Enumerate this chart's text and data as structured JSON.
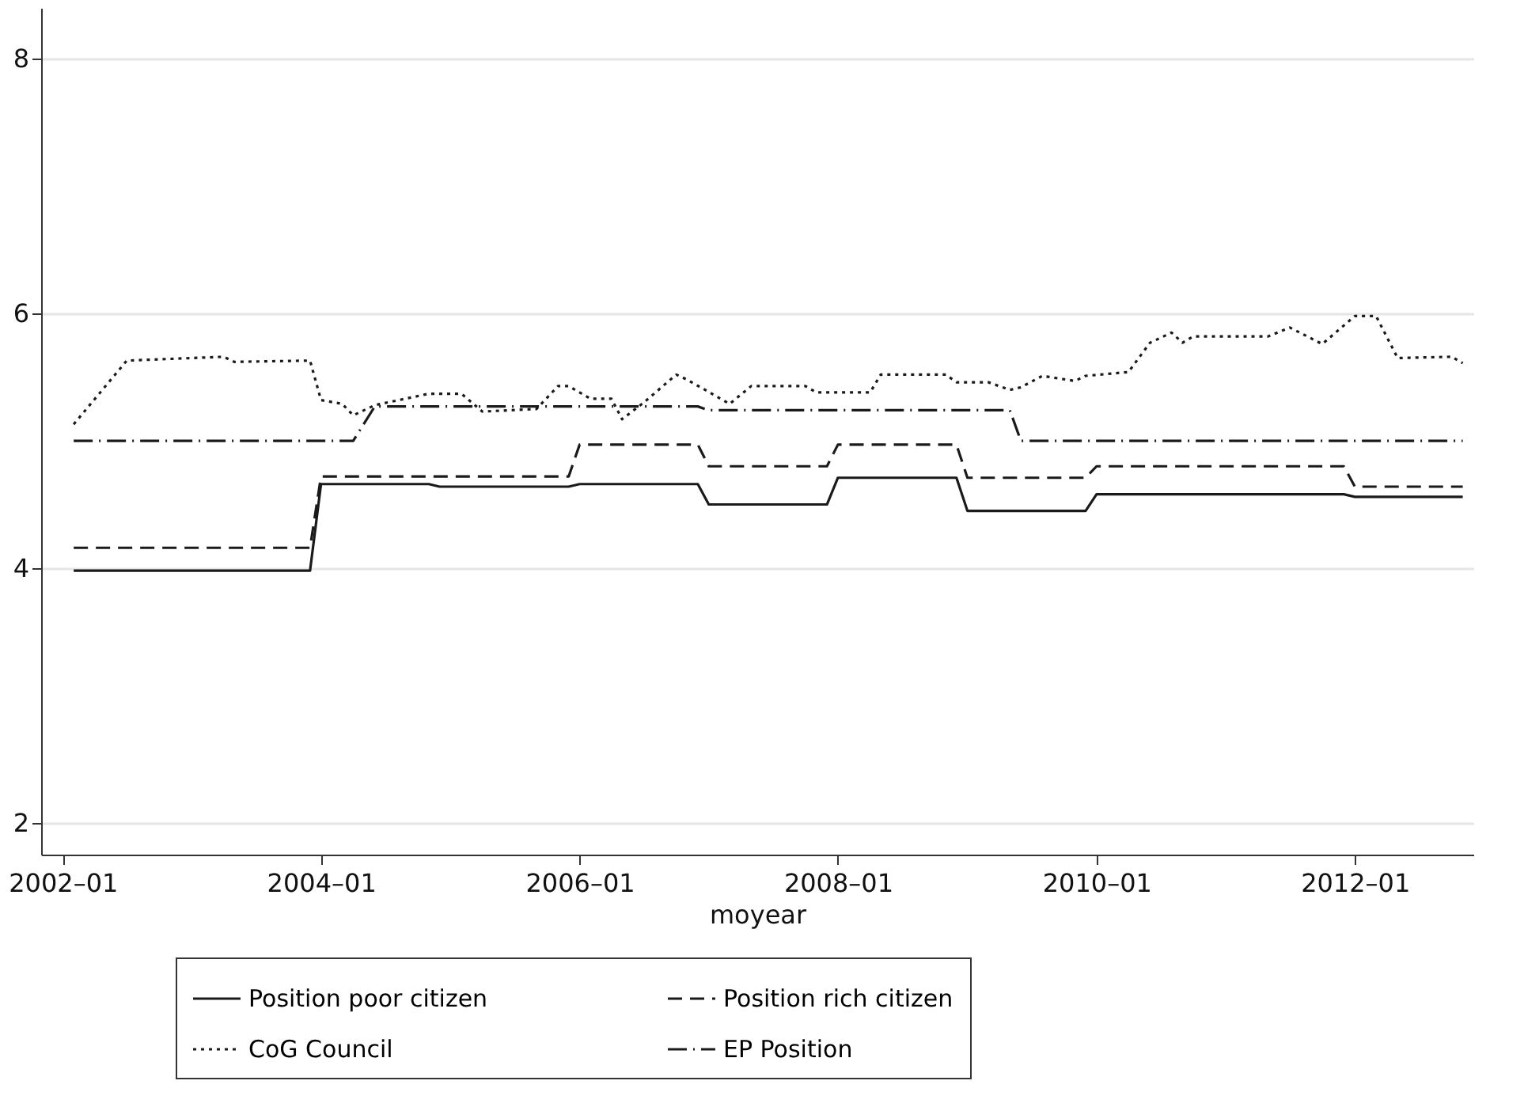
{
  "chart_data": {
    "type": "line",
    "xlabel": "moyear",
    "xlim": [
      "2001-11",
      "2012-12"
    ],
    "xticks": [
      {
        "value": "2002-01",
        "label": "2002–01"
      },
      {
        "value": "2004-01",
        "label": "2004–01"
      },
      {
        "value": "2006-01",
        "label": "2006–01"
      },
      {
        "value": "2008-01",
        "label": "2008–01"
      },
      {
        "value": "2010-01",
        "label": "2010–01"
      },
      {
        "value": "2012-01",
        "label": "2012–01"
      }
    ],
    "ylim": [
      1.75,
      8.4
    ],
    "yticks": [
      2,
      4,
      6,
      8
    ],
    "grid": "y",
    "legend": "bottom",
    "series": [
      {
        "name": "Position poor citizen",
        "color": "#1a1a1a",
        "line_style": "solid",
        "x": [
          "2002-02",
          "2003-12",
          "2004-01",
          "2004-11",
          "2004-12",
          "2005-12",
          "2006-01",
          "2006-12",
          "2007-01",
          "2007-12",
          "2008-01",
          "2008-12",
          "2009-01",
          "2009-12",
          "2010-01",
          "2011-12",
          "2012-01",
          "2012-11"
        ],
        "values": [
          3.98,
          3.98,
          4.66,
          4.66,
          4.64,
          4.64,
          4.66,
          4.66,
          4.5,
          4.5,
          4.71,
          4.71,
          4.45,
          4.45,
          4.58,
          4.58,
          4.56,
          4.56
        ]
      },
      {
        "name": "Position rich citizen",
        "color": "#1a1a1a",
        "line_style": "dashed",
        "x": [
          "2002-02",
          "2003-12",
          "2004-01",
          "2005-12",
          "2006-01",
          "2006-12",
          "2007-01",
          "2007-12",
          "2008-01",
          "2008-12",
          "2009-01",
          "2009-12",
          "2010-01",
          "2011-12",
          "2012-01",
          "2012-11"
        ],
        "values": [
          4.16,
          4.16,
          4.72,
          4.72,
          4.97,
          4.97,
          4.8,
          4.8,
          4.97,
          4.97,
          4.71,
          4.71,
          4.8,
          4.8,
          4.64,
          4.64
        ]
      },
      {
        "name": "CoG Council",
        "color": "#1a1a1a",
        "line_style": "dotted",
        "x": [
          "2002-02",
          "2002-07",
          "2003-04",
          "2003-05",
          "2003-12",
          "2004-01",
          "2004-03",
          "2004-04",
          "2004-06",
          "2004-11",
          "2005-02",
          "2005-04",
          "2005-09",
          "2005-11",
          "2005-12",
          "2006-02",
          "2006-04",
          "2006-05",
          "2006-07",
          "2006-10",
          "2006-11",
          "2007-03",
          "2007-05",
          "2007-10",
          "2007-11",
          "2008-04",
          "2008-05",
          "2008-11",
          "2008-12",
          "2009-03",
          "2009-05",
          "2009-06",
          "2009-08",
          "2009-11",
          "2009-12",
          "2010-04",
          "2010-06",
          "2010-08",
          "2010-09",
          "2010-10",
          "2011-05",
          "2011-07",
          "2011-10",
          "2012-01",
          "2012-03",
          "2012-05",
          "2012-10",
          "2012-11"
        ],
        "values": [
          5.13,
          5.63,
          5.66,
          5.62,
          5.63,
          5.32,
          5.29,
          5.2,
          5.28,
          5.37,
          5.37,
          5.23,
          5.25,
          5.43,
          5.43,
          5.33,
          5.33,
          5.17,
          5.3,
          5.52,
          5.48,
          5.29,
          5.43,
          5.43,
          5.38,
          5.38,
          5.52,
          5.52,
          5.46,
          5.46,
          5.4,
          5.42,
          5.51,
          5.47,
          5.51,
          5.54,
          5.77,
          5.85,
          5.77,
          5.82,
          5.82,
          5.89,
          5.76,
          5.98,
          5.98,
          5.65,
          5.66,
          5.61
        ]
      },
      {
        "name": "EP Position",
        "color": "#1a1a1a",
        "line_style": "dashdot",
        "x": [
          "2002-02",
          "2004-04",
          "2004-06",
          "2006-12",
          "2007-01",
          "2009-05",
          "2009-06",
          "2012-11"
        ],
        "values": [
          5.0,
          5.0,
          5.27,
          5.27,
          5.24,
          5.24,
          5.0,
          5.0
        ]
      }
    ]
  }
}
